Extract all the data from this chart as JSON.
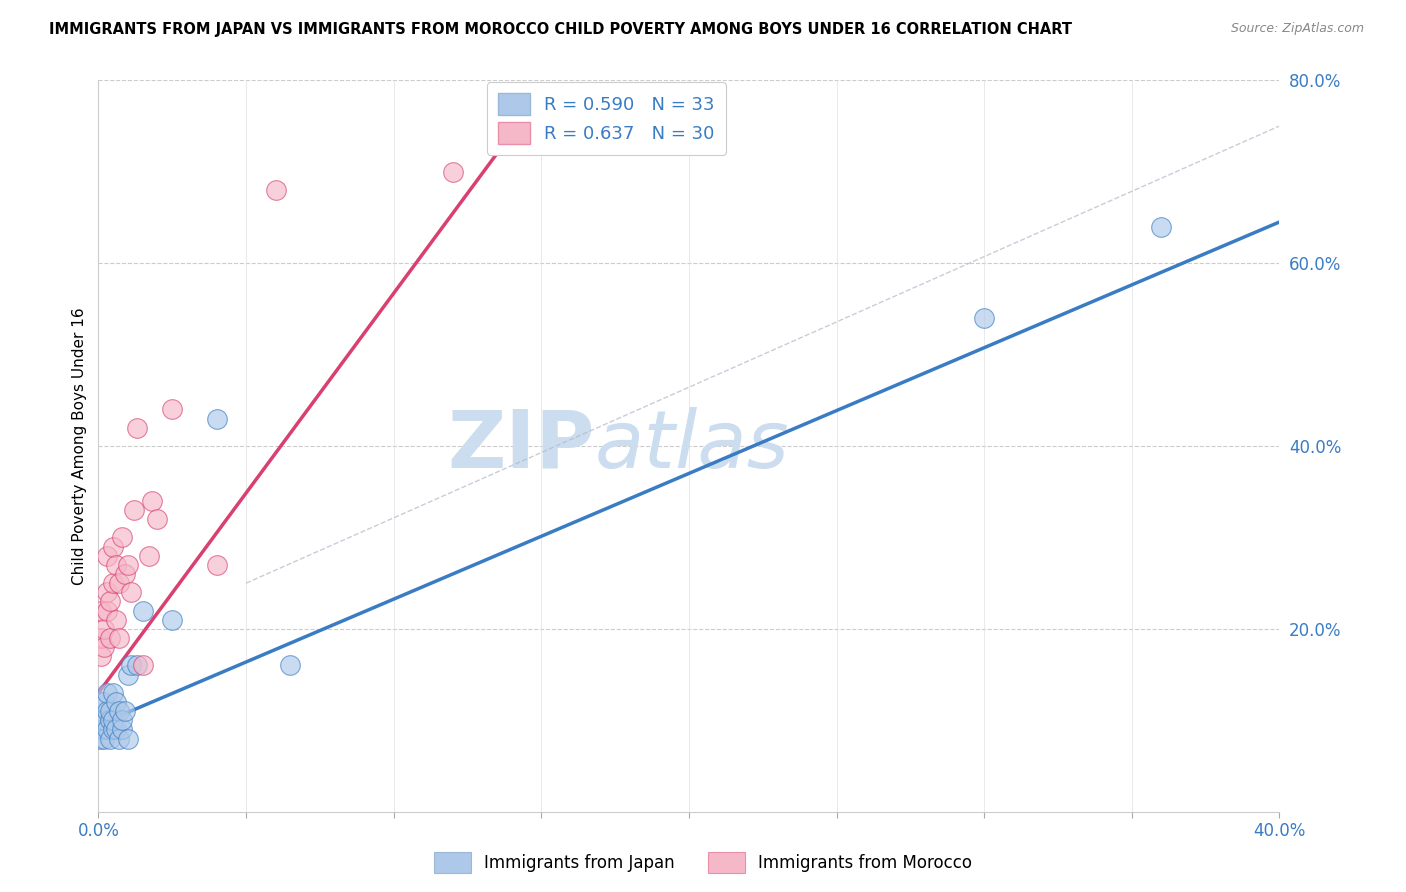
{
  "title": "IMMIGRANTS FROM JAPAN VS IMMIGRANTS FROM MOROCCO CHILD POVERTY AMONG BOYS UNDER 16 CORRELATION CHART",
  "source": "Source: ZipAtlas.com",
  "ylabel_left": "Child Poverty Among Boys Under 16",
  "legend_label1": "Immigrants from Japan",
  "legend_label2": "Immigrants from Morocco",
  "R1": 0.59,
  "N1": 33,
  "R2": 0.637,
  "N2": 30,
  "color_japan": "#adc8e8",
  "color_morocco": "#f5b8c8",
  "line_color_japan": "#3a7cc4",
  "line_color_morocco": "#d94070",
  "watermark_zip": "ZIP",
  "watermark_atlas": "atlas",
  "watermark_color": "#ccddf0",
  "xlim": [
    0.0,
    0.4
  ],
  "ylim": [
    0.0,
    0.8
  ],
  "xticks": [
    0.0,
    0.05,
    0.1,
    0.15,
    0.2,
    0.25,
    0.3,
    0.35,
    0.4
  ],
  "yticks_right": [
    0.0,
    0.2,
    0.4,
    0.6,
    0.8
  ],
  "ytick_labels_right": [
    "",
    "20.0%",
    "40.0%",
    "60.0%",
    "80.0%"
  ],
  "japan_x": [
    0.0005,
    0.001,
    0.001,
    0.0015,
    0.002,
    0.002,
    0.002,
    0.003,
    0.003,
    0.003,
    0.004,
    0.004,
    0.004,
    0.005,
    0.005,
    0.005,
    0.006,
    0.006,
    0.007,
    0.007,
    0.008,
    0.008,
    0.009,
    0.01,
    0.01,
    0.011,
    0.013,
    0.015,
    0.025,
    0.04,
    0.065,
    0.3,
    0.36
  ],
  "japan_y": [
    0.08,
    0.1,
    0.12,
    0.09,
    0.08,
    0.1,
    0.12,
    0.09,
    0.11,
    0.13,
    0.08,
    0.1,
    0.11,
    0.09,
    0.1,
    0.13,
    0.09,
    0.12,
    0.08,
    0.11,
    0.09,
    0.1,
    0.11,
    0.08,
    0.15,
    0.16,
    0.16,
    0.22,
    0.21,
    0.43,
    0.16,
    0.54,
    0.64
  ],
  "morocco_x": [
    0.001,
    0.001,
    0.001,
    0.002,
    0.002,
    0.003,
    0.003,
    0.003,
    0.004,
    0.004,
    0.005,
    0.005,
    0.006,
    0.006,
    0.007,
    0.007,
    0.008,
    0.009,
    0.01,
    0.011,
    0.012,
    0.013,
    0.015,
    0.017,
    0.018,
    0.02,
    0.025,
    0.04,
    0.06,
    0.12
  ],
  "morocco_y": [
    0.17,
    0.19,
    0.22,
    0.18,
    0.2,
    0.22,
    0.24,
    0.28,
    0.19,
    0.23,
    0.25,
    0.29,
    0.21,
    0.27,
    0.19,
    0.25,
    0.3,
    0.26,
    0.27,
    0.24,
    0.33,
    0.42,
    0.16,
    0.28,
    0.34,
    0.32,
    0.44,
    0.27,
    0.68,
    0.7
  ],
  "japan_line_x": [
    0.0,
    0.4
  ],
  "japan_line_y": [
    0.095,
    0.645
  ],
  "morocco_line_x": [
    0.0,
    0.135
  ],
  "morocco_line_y": [
    0.13,
    0.72
  ],
  "ref_line_x": [
    0.05,
    0.4
  ],
  "ref_line_y": [
    0.25,
    0.75
  ]
}
